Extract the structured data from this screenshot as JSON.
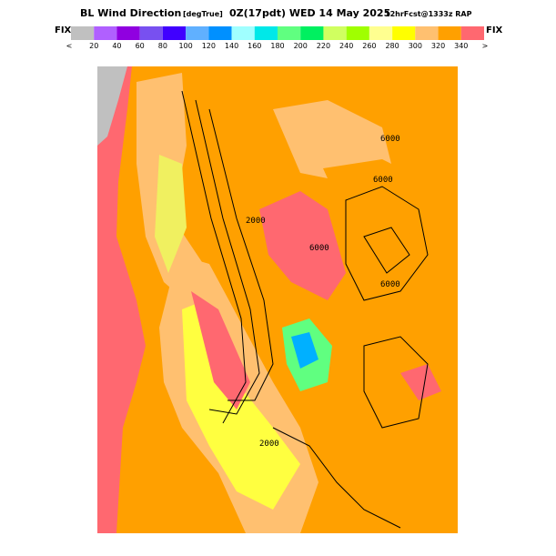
{
  "header": {
    "title": "BL Wind Direction",
    "units": "[degTrue]",
    "time": "0Z(17pdt) WED 14 May 2025",
    "forecast": "12hrFcst@1333z RAP"
  },
  "colorbar": {
    "end_left": "FIX",
    "end_right": "FIX",
    "under": "<",
    "over": ">",
    "ticks": [
      "20",
      "40",
      "60",
      "80",
      "100",
      "120",
      "140",
      "160",
      "180",
      "200",
      "220",
      "240",
      "260",
      "280",
      "300",
      "320",
      "340"
    ]
  },
  "map": {
    "contour_labels": [
      "6000",
      "6000",
      "6000",
      "6000",
      "2000",
      "2000"
    ]
  }
}
